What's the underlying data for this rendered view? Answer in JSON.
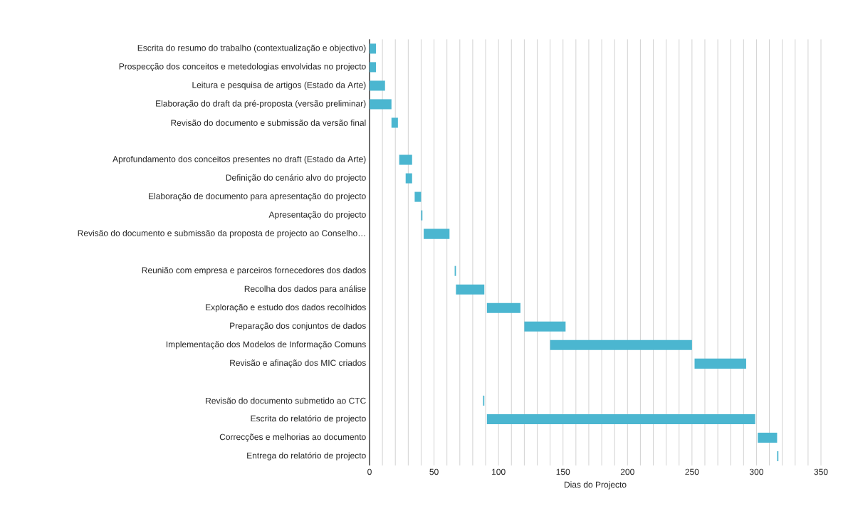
{
  "chart_data": {
    "type": "bar",
    "orientation": "horizontal",
    "xlabel": "Dias do Projecto",
    "color": "#4bb6d0",
    "grid": "x",
    "categories": [
      "Escrita do resumo do trabalho (contextualização e objectivo)",
      "Prospecção dos conceitos e metedologias envolvidas no projecto",
      "Leitura e pesquisa de artigos (Estado da Arte)",
      "Elaboração do draft da pré-proposta (versão preliminar)",
      "Revisão do documento e submissão da versão final",
      null,
      "Aprofundamento dos conceitos presentes no draft (Estado da Arte)",
      "Definição do cenário alvo do projecto",
      "Elaboração de documento para apresentação do projecto",
      "Apresentação do projecto",
      "Revisão do documento e submissão da proposta de projecto ao Conselho…",
      null,
      "Reunião com empresa e parceiros fornecedores dos dados",
      "Recolha dos dados para análise",
      "Exploração e estudo dos dados recolhidos",
      "Preparação dos conjuntos de dados",
      "Implementação dos Modelos de Informação Comuns",
      "Revisão e afinação dos MIC criados",
      null,
      "Revisão do documento submetido ao CTC",
      "Escrita do relatório de projecto",
      "Correcções e melhorias ao documento",
      "Entrega do relatório de projecto"
    ],
    "base": [
      0,
      0,
      0,
      0,
      17,
      null,
      23,
      28,
      35,
      40,
      42,
      null,
      66,
      67,
      91,
      120,
      140,
      252,
      null,
      88,
      91,
      301,
      316
    ],
    "values": [
      5,
      5,
      12,
      17,
      5,
      null,
      10,
      5,
      5,
      1,
      20,
      null,
      1,
      22,
      26,
      32,
      110,
      40,
      null,
      1,
      208,
      15,
      1
    ],
    "xlim": [
      0,
      350
    ],
    "xticks": [
      0,
      {
        "value": 10,
        "label": null
      },
      {
        "value": 20,
        "label": null
      },
      {
        "value": 30,
        "label": null
      },
      {
        "value": 40,
        "label": null
      },
      50,
      {
        "value": 60,
        "label": null
      },
      {
        "value": 70,
        "label": null
      },
      {
        "value": 80,
        "label": null
      },
      {
        "value": 90,
        "label": null
      },
      100,
      {
        "value": 110,
        "label": null
      },
      {
        "value": 120,
        "label": null
      },
      {
        "value": 130,
        "label": null
      },
      {
        "value": 140,
        "label": null
      },
      150,
      {
        "value": 160,
        "label": null
      },
      {
        "value": 170,
        "label": null
      },
      {
        "value": 180,
        "label": null
      },
      {
        "value": 190,
        "label": null
      },
      200,
      {
        "value": 210,
        "label": null
      },
      {
        "value": 220,
        "label": null
      },
      {
        "value": 230,
        "label": null
      },
      {
        "value": 240,
        "label": null
      },
      250,
      {
        "value": 260,
        "label": null
      },
      {
        "value": 270,
        "label": null
      },
      {
        "value": 280,
        "label": null
      },
      {
        "value": 290,
        "label": null
      },
      300,
      {
        "value": 310,
        "label": null
      },
      {
        "value": 320,
        "label": null
      },
      {
        "value": 330,
        "label": null
      },
      {
        "value": 340,
        "label": null
      },
      350
    ]
  }
}
